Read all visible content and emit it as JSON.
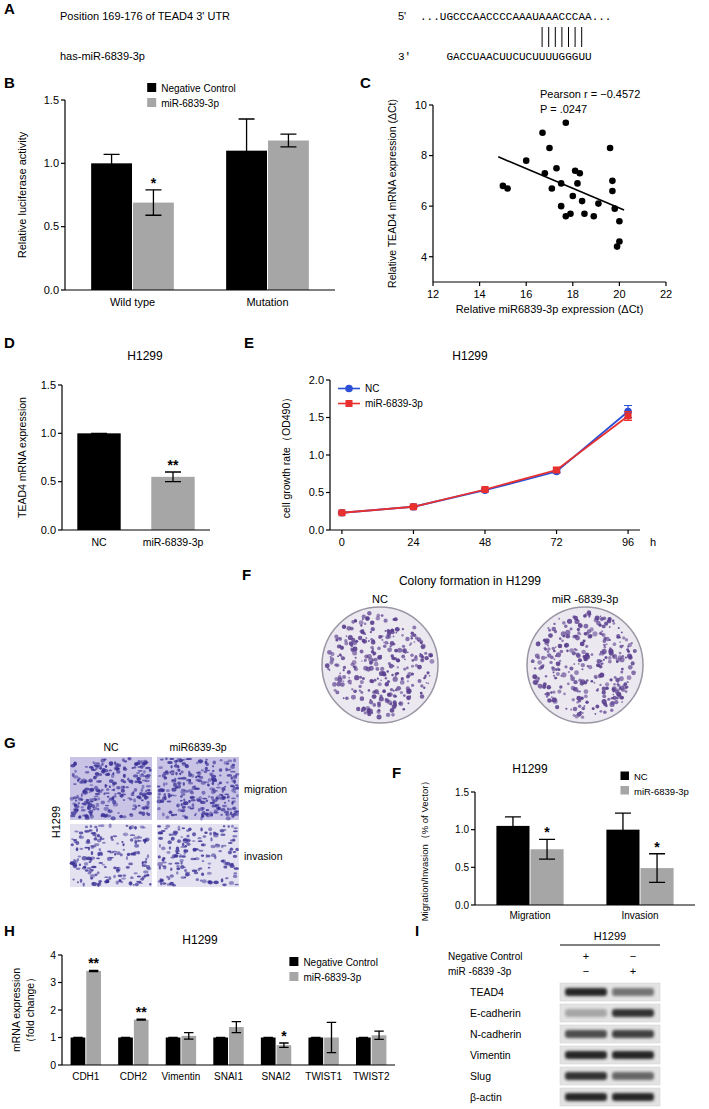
{
  "panel_labels": [
    "A",
    "B",
    "C",
    "D",
    "E",
    "F",
    "G",
    "F",
    "H",
    "I"
  ],
  "sequence": {
    "target_label": "Position 169-176 of TEAD4 3' UTR",
    "target_end": "5'",
    "target_seq": "...UGCCCAACCCCAAAUAAACCCAA...",
    "mirna_label": "has-miR-6839-3p",
    "mirna_end": "3'",
    "mirna_seq": "GACCUAACUUCUCUUUUGGGUU",
    "pairs": 7
  },
  "chart_data": [
    {
      "type": "bar",
      "ylabel": "Relative luciferase activity",
      "categories": [
        "Wild type",
        "Mutation"
      ],
      "series": [
        {
          "name": "Negative Control",
          "color": "#000000",
          "values": [
            1.0,
            1.1
          ],
          "errors": [
            0.07,
            0.25
          ]
        },
        {
          "name": "miR-6839-3p",
          "color": "#a6a6a6",
          "values": [
            0.69,
            1.18
          ],
          "errors": [
            0.1,
            0.05
          ]
        }
      ],
      "ylim": [
        0,
        1.5
      ],
      "yticks": [
        {
          "value": 0,
          "label": "0.0"
        },
        {
          "value": 0.5,
          "label": "0.5"
        },
        {
          "value": 1,
          "label": "1.0"
        },
        {
          "value": 1.5,
          "label": "1.5"
        }
      ],
      "legend": "top",
      "annotations": [
        {
          "text": "*",
          "category": 0,
          "series": 1
        }
      ]
    },
    {
      "type": "scatter",
      "xlabel": "Relative miR6839-3p expression (ΔCt)",
      "ylabel": "Relative TEAD4 mRNA expression (ΔCt)",
      "x": [
        15.0,
        15.2,
        16.0,
        16.7,
        16.8,
        17.0,
        17.1,
        17.3,
        17.5,
        17.5,
        17.7,
        17.7,
        17.9,
        18.0,
        18.1,
        18.2,
        18.3,
        18.4,
        18.5,
        18.9,
        19.1,
        19.6,
        19.7,
        19.7,
        19.8,
        20.0,
        19.9,
        20.0
      ],
      "values": [
        6.8,
        6.7,
        7.8,
        8.9,
        7.3,
        8.3,
        6.7,
        7.5,
        6.0,
        6.9,
        9.3,
        5.6,
        5.7,
        6.4,
        7.4,
        6.9,
        7.3,
        6.2,
        5.7,
        5.6,
        6.1,
        8.3,
        7.0,
        6.6,
        5.9,
        4.6,
        4.4,
        5.4
      ],
      "color": "#000000",
      "fit": {
        "x": [
          14.8,
          20.2
        ],
        "values": [
          7.95,
          5.85
        ]
      },
      "xlim": [
        12,
        22
      ],
      "xticks": [
        12,
        14,
        16,
        18,
        20,
        22
      ],
      "ylim": [
        3,
        10
      ],
      "yticks": [
        4,
        6,
        8,
        10
      ],
      "annotations": [
        "Pearson r = −0.4572",
        "P = .0247"
      ]
    },
    {
      "type": "bar",
      "title": "H1299",
      "ylabel": "TEAD4 mRNA expression",
      "categories": [
        "NC",
        "miR-6839-3p"
      ],
      "values": [
        1.0,
        0.55
      ],
      "errors": [
        0,
        0.05
      ],
      "colors": [
        "#000000",
        "#a6a6a6"
      ],
      "ylim": [
        0,
        1.5
      ],
      "yticks": [
        {
          "value": 0,
          "label": "0.0"
        },
        {
          "value": 0.5,
          "label": "0.5"
        },
        {
          "value": 1,
          "label": "1.0"
        },
        {
          "value": 1.5,
          "label": "1.5"
        }
      ],
      "annotations": [
        {
          "text": "**",
          "category": 1
        }
      ]
    },
    {
      "type": "line",
      "title": "H1299",
      "xlabel": "h",
      "ylabel": "cell growth rate（OD490）",
      "x": [
        0,
        24,
        48,
        72,
        96
      ],
      "series": [
        {
          "name": "NC",
          "color": "#2b50d6",
          "marker": "circle",
          "values": [
            0.23,
            0.31,
            0.53,
            0.78,
            1.58
          ],
          "errors": [
            0.01,
            0.01,
            0.02,
            0.02,
            0.08
          ]
        },
        {
          "name": "miR-6839-3p",
          "color": "#e8302f",
          "marker": "square",
          "values": [
            0.23,
            0.31,
            0.54,
            0.8,
            1.52
          ],
          "errors": [
            0.01,
            0.02,
            0.02,
            0.03,
            0.06
          ]
        }
      ],
      "xlim": [
        -4,
        100
      ],
      "xticks": [
        0,
        24,
        48,
        72,
        96
      ],
      "ylim": [
        0,
        2
      ],
      "yticks": [
        {
          "value": 0,
          "label": "0.0"
        },
        {
          "value": 0.5,
          "label": "0.5"
        },
        {
          "value": 1,
          "label": "1.0"
        },
        {
          "value": 1.5,
          "label": "1.5"
        },
        {
          "value": 2,
          "label": "2.0"
        }
      ],
      "legend": "top-left"
    },
    {
      "type": "bar",
      "title": "H1299",
      "ylabel": "Migration/Invasion（% of Vector）",
      "categories": [
        "Migration",
        "Invasion"
      ],
      "series": [
        {
          "name": "NC",
          "color": "#000000",
          "values": [
            1.05,
            1.0
          ],
          "errors": [
            0.12,
            0.22
          ]
        },
        {
          "name": "miR-6839-3p",
          "color": "#a6a6a6",
          "values": [
            0.74,
            0.49
          ],
          "errors": [
            0.13,
            0.19
          ]
        }
      ],
      "ylim": [
        0,
        1.5
      ],
      "yticks": [
        {
          "value": 0,
          "label": "0.0"
        },
        {
          "value": 0.5,
          "label": "0.5"
        },
        {
          "value": 1,
          "label": "1.0"
        },
        {
          "value": 1.5,
          "label": "1.5"
        }
      ],
      "legend": "top-right",
      "annotations": [
        {
          "text": "*",
          "category": 0,
          "series": 1
        },
        {
          "text": "*",
          "category": 1,
          "series": 1
        }
      ]
    },
    {
      "type": "bar",
      "title": "H1299",
      "ylabel": [
        "mRNA expression",
        "（fold change）"
      ],
      "categories": [
        "CDH1",
        "CDH2",
        "Vimentin",
        "SNAI1",
        "SNAI2",
        "TWIST1",
        "TWIST2"
      ],
      "series": [
        {
          "name": "Negative Control",
          "color": "#000000",
          "values": [
            1,
            1,
            1,
            1,
            1,
            1,
            1
          ],
          "errors": [
            0,
            0,
            0,
            0,
            0,
            0,
            0
          ]
        },
        {
          "name": "miR-6839-3p",
          "color": "#a6a6a6",
          "values": [
            3.42,
            1.65,
            1.06,
            1.38,
            0.72,
            1.0,
            1.08
          ],
          "errors": [
            0.02,
            0.02,
            0.12,
            0.2,
            0.08,
            0.55,
            0.15
          ]
        }
      ],
      "ylim": [
        0,
        4
      ],
      "yticks": [
        0,
        1,
        2,
        3,
        4
      ],
      "legend": "top-right",
      "annotations": [
        {
          "text": "**",
          "category": 0,
          "series": 1
        },
        {
          "text": "**",
          "category": 1,
          "series": 1
        },
        {
          "text": "*",
          "category": 4,
          "series": 1
        }
      ]
    }
  ],
  "colony": {
    "title": "Colony formation in H1299",
    "plates": [
      "NC",
      "miR -6839-3p"
    ]
  },
  "transwell": {
    "cell_line": "H1299",
    "columns": [
      "NC",
      "miR6839-3p"
    ],
    "rows": [
      "migration",
      "invasion"
    ]
  },
  "blot": {
    "cell_line": "H1299",
    "conditions": [
      {
        "label": "Negative Control",
        "marks": [
          "+",
          "−"
        ]
      },
      {
        "label": "miR -6839 -3p",
        "marks": [
          "−",
          "+"
        ]
      }
    ],
    "rows": [
      {
        "label": "TEAD4",
        "intensity": [
          0.85,
          0.55
        ]
      },
      {
        "label": "E-cadherin",
        "intensity": [
          0.35,
          0.8
        ]
      },
      {
        "label": "N-cadherin",
        "intensity": [
          0.7,
          0.75
        ]
      },
      {
        "label": "Vimentin",
        "intensity": [
          0.85,
          0.85
        ]
      },
      {
        "label": "Slug",
        "intensity": [
          0.8,
          0.6
        ]
      },
      {
        "label": "β-actin",
        "intensity": [
          0.85,
          0.85
        ]
      }
    ]
  }
}
